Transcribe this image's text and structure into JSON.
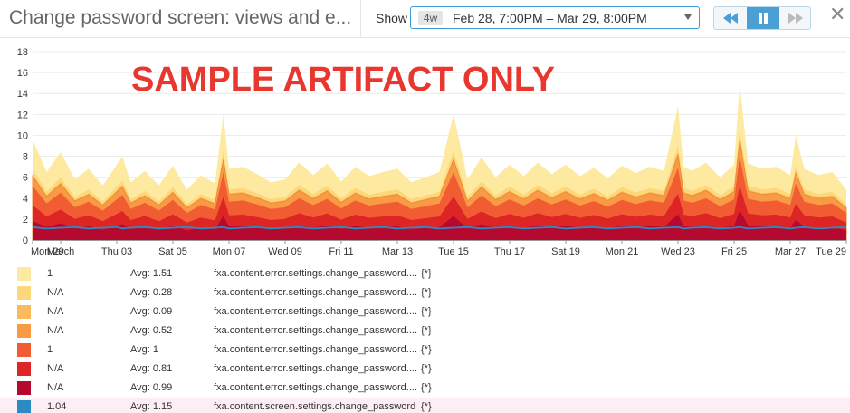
{
  "header": {
    "title": "Change password screen: views and e...",
    "show_label": "Show",
    "range_badge": "4w",
    "range_text": "Feb 28, 7:00PM – Mar 29, 8:00PM",
    "close_symbol": "✕"
  },
  "watermark": "SAMPLE ARTIFACT ONLY",
  "chart_data": {
    "type": "area",
    "stacked": true,
    "ylim": [
      0,
      18
    ],
    "yticks": [
      0,
      2,
      4,
      6,
      8,
      10,
      12,
      14,
      16,
      18
    ],
    "xlim": [
      0,
      29
    ],
    "xticks": [
      {
        "pos": 0,
        "label": "Mon 29"
      },
      {
        "pos": 1,
        "label": "March"
      },
      {
        "pos": 3,
        "label": "Thu 03"
      },
      {
        "pos": 5,
        "label": "Sat 05"
      },
      {
        "pos": 7,
        "label": "Mon 07"
      },
      {
        "pos": 9,
        "label": "Wed 09"
      },
      {
        "pos": 11,
        "label": "Fri 11"
      },
      {
        "pos": 13,
        "label": "Mar 13"
      },
      {
        "pos": 15,
        "label": "Tue 15"
      },
      {
        "pos": 17,
        "label": "Thu 17"
      },
      {
        "pos": 19,
        "label": "Sat 19"
      },
      {
        "pos": 21,
        "label": "Mon 21"
      },
      {
        "pos": 23,
        "label": "Wed 23"
      },
      {
        "pos": 25,
        "label": "Fri 25"
      },
      {
        "pos": 27,
        "label": "Mar 27"
      },
      {
        "pos": 29,
        "label": "Tue 29"
      }
    ],
    "grid": true,
    "total_envelope": {
      "x": [
        0,
        0.5,
        1,
        1.5,
        2,
        2.5,
        3,
        3.2,
        3.5,
        4,
        4.5,
        5,
        5.5,
        6,
        6.5,
        6.8,
        7,
        7.5,
        8,
        8.5,
        9,
        9.5,
        10,
        10.5,
        11,
        11.5,
        12,
        12.5,
        13,
        13.5,
        14,
        14.5,
        15,
        15.5,
        16,
        16.5,
        17,
        17.5,
        18,
        18.5,
        19,
        19.5,
        20,
        20.5,
        21,
        21.5,
        22,
        22.5,
        23,
        23.2,
        23.5,
        24,
        24.5,
        25,
        25.2,
        25.5,
        26,
        26.5,
        27,
        27.2,
        27.5,
        28,
        28.5,
        29
      ],
      "y": [
        9.6,
        6.5,
        8.4,
        5.8,
        6.8,
        5.2,
        7.2,
        8.0,
        5.5,
        6.6,
        5.2,
        7.1,
        4.8,
        6.2,
        5.4,
        12.0,
        6.8,
        7.0,
        6.3,
        5.5,
        5.8,
        7.4,
        6.2,
        7.3,
        5.6,
        7.0,
        6.1,
        6.5,
        6.8,
        5.5,
        6.0,
        6.5,
        12.0,
        5.8,
        7.9,
        6.0,
        7.2,
        6.1,
        7.4,
        6.3,
        7.2,
        6.1,
        6.9,
        5.9,
        7.1,
        6.4,
        7.0,
        6.6,
        12.8,
        7.0,
        6.6,
        7.4,
        6.0,
        7.2,
        14.9,
        7.3,
        6.8,
        7.0,
        6.2,
        10.0,
        6.8,
        6.2,
        6.5,
        4.8
      ]
    },
    "series": [
      {
        "value": "1",
        "avg": 1.51,
        "color": "#fdeaa0"
      },
      {
        "value": "N/A",
        "avg": 0.28,
        "color": "#fdd87a"
      },
      {
        "value": "N/A",
        "avg": 0.09,
        "color": "#fcbb5c"
      },
      {
        "value": "N/A",
        "avg": 0.52,
        "color": "#f99a45"
      },
      {
        "value": "1",
        "avg": 1,
        "color": "#f25c33"
      },
      {
        "value": "N/A",
        "avg": 0.81,
        "color": "#dc2524"
      },
      {
        "value": "N/A",
        "avg": 0.99,
        "color": "#b5092f"
      },
      {
        "value": "1.04",
        "avg": 1.15,
        "color": "#2b8cc4",
        "line": true
      }
    ]
  },
  "legend": [
    {
      "swatch": "#fdeaa0",
      "value": "1",
      "avg": "Avg: 1.51",
      "name": "fxa.content.error.settings.change_password....",
      "scope": "{*}"
    },
    {
      "swatch": "#fdd87a",
      "value": "N/A",
      "avg": "Avg: 0.28",
      "name": "fxa.content.error.settings.change_password....",
      "scope": "{*}"
    },
    {
      "swatch": "#fcbb5c",
      "value": "N/A",
      "avg": "Avg: 0.09",
      "name": "fxa.content.error.settings.change_password....",
      "scope": "{*}"
    },
    {
      "swatch": "#f99a45",
      "value": "N/A",
      "avg": "Avg: 0.52",
      "name": "fxa.content.error.settings.change_password....",
      "scope": "{*}"
    },
    {
      "swatch": "#f25c33",
      "value": "1",
      "avg": "Avg: 1",
      "name": "fxa.content.error.settings.change_password....",
      "scope": "{*}"
    },
    {
      "swatch": "#dc2524",
      "value": "N/A",
      "avg": "Avg: 0.81",
      "name": "fxa.content.error.settings.change_password....",
      "scope": "{*}"
    },
    {
      "swatch": "#b5092f",
      "value": "N/A",
      "avg": "Avg: 0.99",
      "name": "fxa.content.error.settings.change_password....",
      "scope": "{*}"
    },
    {
      "swatch": "#2b8cc4",
      "value": "1.04",
      "avg": "Avg: 1.15",
      "name": "fxa.content.screen.settings.change_password",
      "scope": "{*}",
      "highlight": true
    }
  ]
}
